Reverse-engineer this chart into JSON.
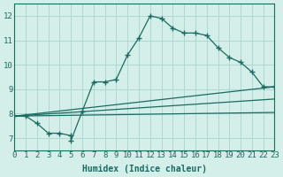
{
  "xlabel": "Humidex (Indice chaleur)",
  "xlim": [
    0,
    23
  ],
  "ylim": [
    6.5,
    12.5
  ],
  "xticks": [
    0,
    1,
    2,
    3,
    4,
    5,
    6,
    7,
    8,
    9,
    10,
    11,
    12,
    13,
    14,
    15,
    16,
    17,
    18,
    19,
    20,
    21,
    22,
    23
  ],
  "yticks": [
    7,
    8,
    9,
    10,
    11,
    12
  ],
  "bg_color": "#d4eeea",
  "grid_color": "#aed8d2",
  "line_color": "#1a6b60",
  "main_series": {
    "x": [
      0,
      1,
      2,
      3,
      4,
      5,
      5,
      6,
      7,
      8,
      9,
      10,
      11,
      12,
      13,
      14,
      15,
      16,
      17,
      18,
      19,
      20,
      21,
      22,
      23
    ],
    "y": [
      7.9,
      7.9,
      7.6,
      7.2,
      7.2,
      7.1,
      6.9,
      8.1,
      9.3,
      9.3,
      9.4,
      10.4,
      11.1,
      12.0,
      11.9,
      11.5,
      11.3,
      11.3,
      11.2,
      10.7,
      10.3,
      10.1,
      9.7,
      9.1,
      9.1
    ]
  },
  "ref_lines": [
    {
      "x": [
        0,
        23
      ],
      "y": [
        7.9,
        9.1
      ]
    },
    {
      "x": [
        0,
        23
      ],
      "y": [
        7.9,
        8.6
      ]
    },
    {
      "x": [
        0,
        23
      ],
      "y": [
        7.9,
        8.05
      ]
    }
  ]
}
